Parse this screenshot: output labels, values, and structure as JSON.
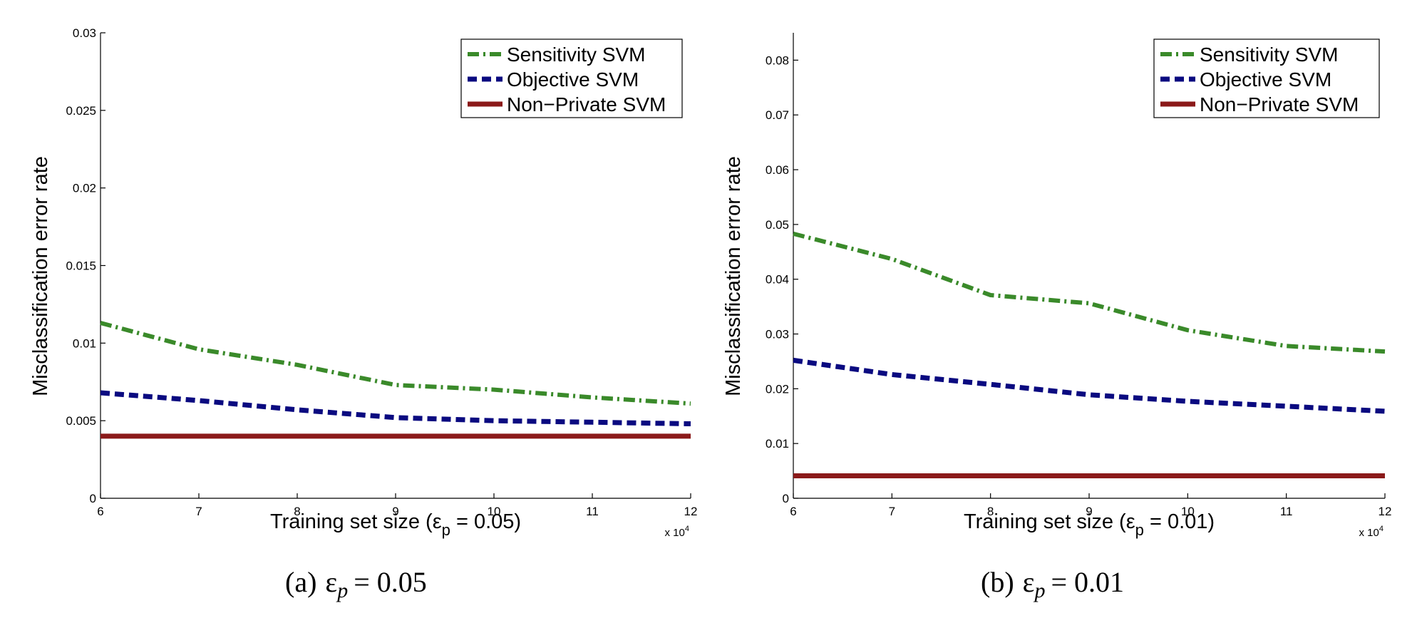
{
  "figure": {
    "colors": {
      "Sensitivity SVM": "#3a8a2a",
      "Objective SVM": "#0a0a80",
      "Non−Private SVM": "#8b1a1a"
    }
  },
  "chart_data": [
    {
      "type": "line",
      "caption": {
        "prefix": "(a)",
        "eps": "ε",
        "sub": "p",
        "value": "= 0.05"
      },
      "xlabel": {
        "main": "Training set size (ε",
        "sub": "p",
        "rest": " = 0.05)"
      },
      "ylabel": "Misclassification error rate",
      "x_exponent": {
        "base": "x 10",
        "power": "4"
      },
      "x_ticks": [
        "6",
        "7",
        "8",
        "9",
        "10",
        "11",
        "12"
      ],
      "y_ticks": [
        "0",
        "0.005",
        "0.01",
        "0.015",
        "0.02",
        "0.025",
        "0.03"
      ],
      "xlim": [
        6,
        12
      ],
      "ylim": [
        0,
        0.03
      ],
      "legend_position": "top-right",
      "x": [
        6,
        7,
        8,
        9,
        10,
        11,
        12
      ],
      "series": [
        {
          "name": "Sensitivity SVM",
          "style": "dashdot",
          "values": [
            0.0113,
            0.0096,
            0.0086,
            0.0073,
            0.007,
            0.0065,
            0.0061
          ]
        },
        {
          "name": "Objective SVM",
          "style": "dashed",
          "values": [
            0.0068,
            0.0063,
            0.0057,
            0.0052,
            0.005,
            0.0049,
            0.0048
          ]
        },
        {
          "name": "Non−Private SVM",
          "style": "solid",
          "values": [
            0.004,
            0.004,
            0.004,
            0.004,
            0.004,
            0.004,
            0.004
          ]
        }
      ]
    },
    {
      "type": "line",
      "caption": {
        "prefix": "(b)",
        "eps": "ε",
        "sub": "p",
        "value": "= 0.01"
      },
      "xlabel": {
        "main": "Training set size (ε",
        "sub": "p",
        "rest": " = 0.01)"
      },
      "ylabel": "Misclassification error rate",
      "x_exponent": {
        "base": "x 10",
        "power": "4"
      },
      "x_ticks": [
        "6",
        "7",
        "8",
        "9",
        "10",
        "11",
        "12"
      ],
      "y_ticks": [
        "0",
        "0.01",
        "0.02",
        "0.03",
        "0.04",
        "0.05",
        "0.06",
        "0.07",
        "0.08"
      ],
      "xlim": [
        6,
        12
      ],
      "ylim": [
        0,
        0.085
      ],
      "legend_position": "top-right",
      "x": [
        6,
        7,
        8,
        9,
        10,
        11,
        12
      ],
      "series": [
        {
          "name": "Sensitivity SVM",
          "style": "dashdot",
          "values": [
            0.0483,
            0.0437,
            0.0371,
            0.0356,
            0.0307,
            0.0278,
            0.0268
          ]
        },
        {
          "name": "Objective SVM",
          "style": "dashed",
          "values": [
            0.0252,
            0.0226,
            0.0208,
            0.0189,
            0.0177,
            0.0168,
            0.0159
          ]
        },
        {
          "name": "Non−Private SVM",
          "style": "solid",
          "values": [
            0.0041,
            0.0041,
            0.0041,
            0.0041,
            0.0041,
            0.0041,
            0.0041
          ]
        }
      ]
    }
  ]
}
